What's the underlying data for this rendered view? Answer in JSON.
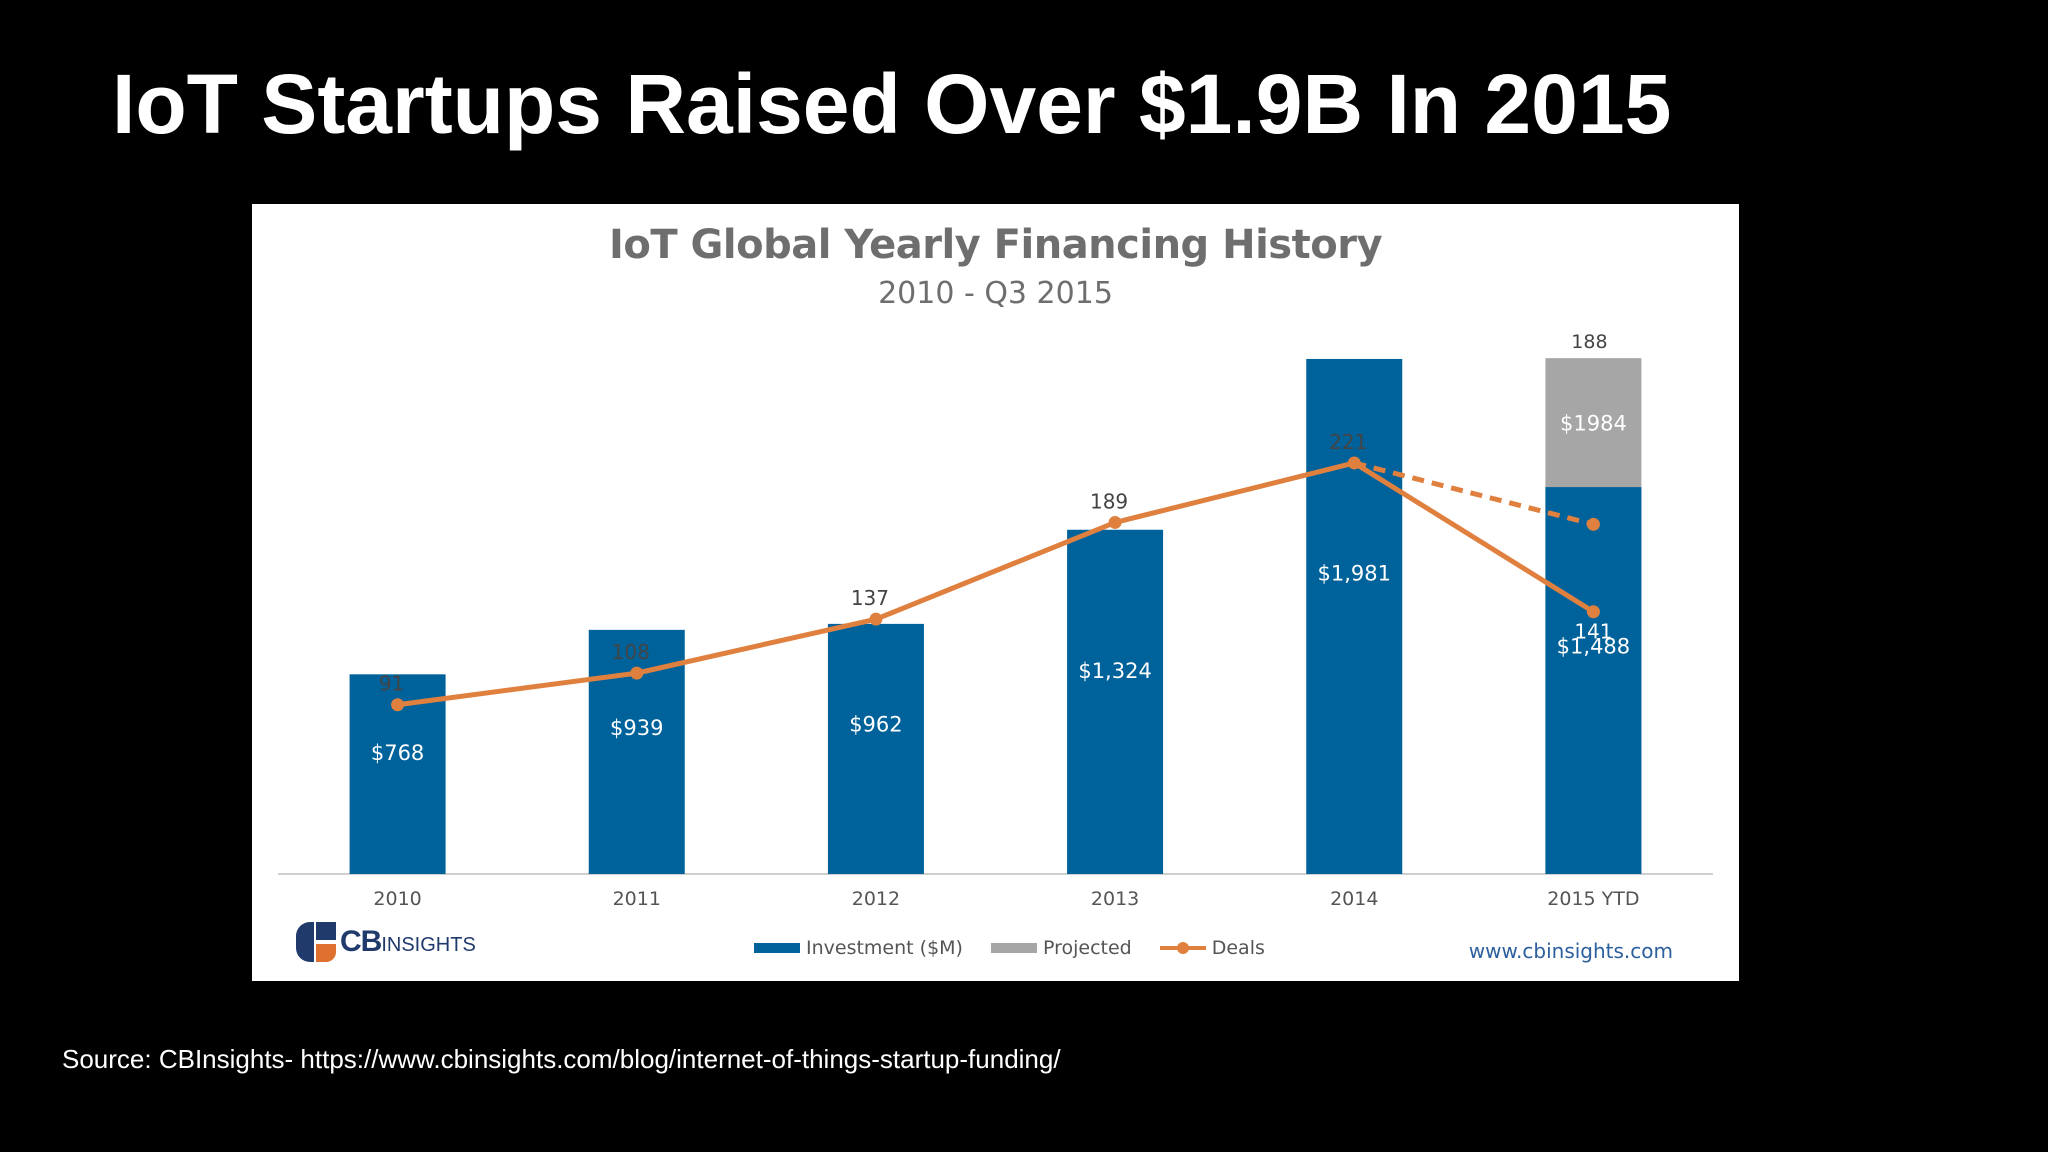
{
  "slide": {
    "title": "IoT Startups Raised Over $1.9B In 2015",
    "source": "Source: CBInsights- https://www.cbinsights.com/blog/internet-of-things-startup-funding/"
  },
  "chart_data": {
    "type": "bar",
    "title": "IoT Global Yearly Financing History",
    "subtitle": "2010 - Q3 2015",
    "categories": [
      "2010",
      "2011",
      "2012",
      "2013",
      "2014",
      "2015 YTD"
    ],
    "series": [
      {
        "name": "Investment ($M)",
        "kind": "bar",
        "color": "#00629b",
        "values": [
          768,
          939,
          962,
          1324,
          1981,
          1488
        ],
        "labels": [
          "$768",
          "$939",
          "$962",
          "$1,324",
          "$1,981",
          "$1,488"
        ]
      },
      {
        "name": "Projected",
        "kind": "bar-stack-total",
        "color": "#a6a6a6",
        "values": [
          null,
          null,
          null,
          null,
          null,
          1984
        ],
        "labels": [
          "",
          "",
          "",
          "",
          "",
          "$1984"
        ]
      },
      {
        "name": "Deals",
        "kind": "line",
        "color": "#e0803f",
        "values": [
          91,
          108,
          137,
          189,
          221,
          141
        ],
        "labels": [
          "91",
          "108",
          "137",
          "189",
          "221",
          "141"
        ]
      },
      {
        "name": "",
        "kind": "line-dashed",
        "color": "#e0803f",
        "values": [
          null,
          null,
          null,
          null,
          221,
          188
        ],
        "labels": [
          "",
          "",
          "",
          "",
          "",
          "188"
        ]
      }
    ],
    "legend": {
      "items": [
        "Investment ($M)",
        "Projected",
        "Deals"
      ],
      "placement": "bottom"
    },
    "y_investment_range": [
      0,
      2000
    ],
    "y_deals_range": [
      0,
      250
    ],
    "grid": false,
    "logo": "CBINSIGHTS",
    "url": "www.cbinsights.com"
  },
  "colors": {
    "investment": "#00629b",
    "projected": "#a6a6a6",
    "deals": "#e0803f",
    "title_gray": "#6e6e6e",
    "background": "#000000"
  }
}
